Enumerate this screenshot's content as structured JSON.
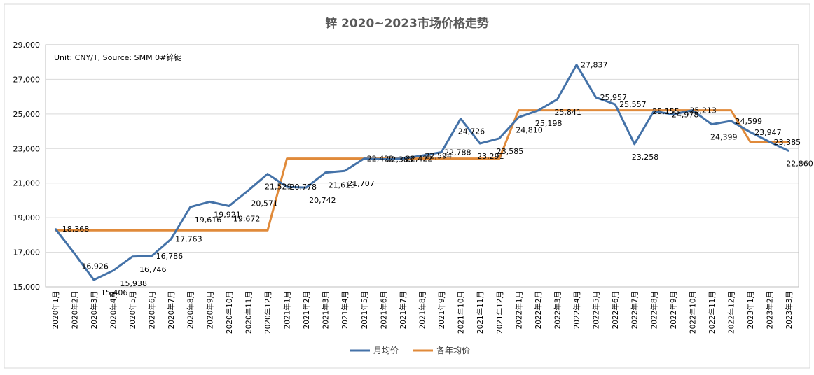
{
  "chart_data": {
    "type": "line",
    "title": "锌 2020~2023市场价格走势",
    "note": "Unit: CNY/T, Source: SMM 0#锌锭",
    "categories": [
      "2020年1月",
      "2020年2月",
      "2020年3月",
      "2020年4月",
      "2020年5月",
      "2020年6月",
      "2020年7月",
      "2020年8月",
      "2020年9月",
      "2020年10月",
      "2020年11月",
      "2020年12月",
      "2021年1月",
      "2021年2月",
      "2021年3月",
      "2021年4月",
      "2021年5月",
      "2021年6月",
      "2021年7月",
      "2021年8月",
      "2021年9月",
      "2021年10月",
      "2021年11月",
      "2021年12月",
      "2022年1月",
      "2022年2月",
      "2022年3月",
      "2022年4月",
      "2022年5月",
      "2022年6月",
      "2022年7月",
      "2022年8月",
      "2022年9月",
      "2022年10月",
      "2022年11月",
      "2022年12月",
      "2023年1月",
      "2023年2月",
      "2023年3月"
    ],
    "ylim": [
      15000,
      29000
    ],
    "yticks": [
      15000,
      17000,
      19000,
      21000,
      23000,
      25000,
      27000,
      29000
    ],
    "ytick_labels": [
      "15,000",
      "17,000",
      "19,000",
      "21,000",
      "23,000",
      "25,000",
      "27,000",
      "29,000"
    ],
    "grid": true,
    "legend_position": "bottom",
    "series": [
      {
        "name": "月均价",
        "color": "#4472a8",
        "values": [
          18368,
          16926,
          15406,
          15938,
          16746,
          16786,
          17763,
          19616,
          19921,
          19672,
          20571,
          21529,
          20778,
          20742,
          21613,
          21707,
          22422,
          22383,
          22422,
          22594,
          22788,
          24726,
          23291,
          23585,
          24810,
          25198,
          25841,
          27837,
          25957,
          25557,
          23258,
          25155,
          24978,
          25213,
          24399,
          24599,
          23947,
          23385,
          22860
        ],
        "labels": [
          "18,368",
          "16,926",
          "15,406",
          "15,938",
          "16,746",
          "16,786",
          "17,763",
          "19,616",
          "19,921",
          "19,672",
          "20,571",
          "21,529",
          "20,778",
          "20,742",
          "21,613",
          "21,707",
          "22,422",
          "22,383",
          "22,422",
          "22,594",
          "22,788",
          "24,726",
          "23,291",
          "23,585",
          "24,810",
          "25,198",
          "25,841",
          "27,837",
          "25,957",
          "25,557",
          "23,258",
          "25,155",
          "24,978",
          "25,213",
          "24,399",
          "24,599",
          "23,947",
          "23,385",
          "22,860"
        ]
      },
      {
        "name": "各年均价",
        "color": "#e08a3a",
        "values": [
          18265,
          18265,
          18265,
          18265,
          18265,
          18265,
          18265,
          18265,
          18265,
          18265,
          18265,
          18265,
          22422,
          22422,
          22422,
          22422,
          22422,
          22422,
          22422,
          22422,
          22422,
          22422,
          22422,
          22422,
          25213,
          25213,
          25213,
          25213,
          25213,
          25213,
          25213,
          25213,
          25213,
          25213,
          25213,
          25213,
          23385,
          23385,
          23385
        ]
      }
    ]
  }
}
